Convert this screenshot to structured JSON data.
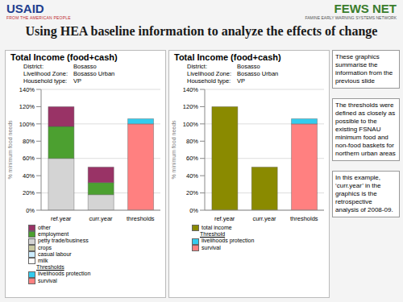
{
  "slide": {
    "title": "Using HEA baseline information to analyze the effects of change",
    "logo_left": {
      "name": "USAID",
      "tagline": "FROM THE AMERICAN PEOPLE"
    },
    "logo_right": {
      "name": "FEWS NET",
      "tagline": "FAMINE EARLY WARNING SYSTEMS NETWORK"
    },
    "notes": [
      "These graphics summarise the information from the previous slide",
      "The thresholds were defined as closely as possible to the existing FSNAU minimum food and non-food baskets for northern urban areas",
      "In this example, ‘curr.year’ in the graphics is the retrospective analysis of 2008-09."
    ]
  },
  "chart_data": [
    {
      "type": "bar",
      "stacked": true,
      "title": "Total Income (food+cash)",
      "subtitle": [
        [
          "District:",
          "Bosasso"
        ],
        [
          "Livelihood Zone:",
          "Bosasso Urban"
        ],
        [
          "Household type:",
          "VP"
        ]
      ],
      "y_label": "% minimum food needs",
      "categories": [
        "ref.year",
        "curr.year",
        "thresholds"
      ],
      "series": [
        {
          "name": "other",
          "color": "#993366",
          "values": [
            23,
            18,
            null
          ]
        },
        {
          "name": "employment",
          "color": "#4ca030",
          "values": [
            37,
            14,
            null
          ]
        },
        {
          "name": "petty trade/business",
          "color": "#d4d4d4",
          "values": [
            60,
            18,
            null
          ]
        },
        {
          "name": "crops",
          "color": "#c8c8a0",
          "values": [
            0,
            0,
            null
          ]
        },
        {
          "name": "casual labour",
          "color": "#ccecff",
          "values": [
            0,
            0,
            null
          ]
        },
        {
          "name": "milk",
          "color": "#ffffff",
          "values": [
            0,
            0,
            null
          ]
        }
      ],
      "legend_title": "Thresholds",
      "threshold_series": [
        {
          "name": "livelihoods protection",
          "color": "#33ccee",
          "values": [
            null,
            null,
            6
          ]
        },
        {
          "name": "survival",
          "color": "#ff8080",
          "values": [
            null,
            null,
            100
          ]
        }
      ],
      "ylim": [
        0,
        140
      ],
      "yticks": [
        {
          "value": 0,
          "label": "0%"
        },
        {
          "value": 20,
          "label": "20%"
        },
        {
          "value": 40,
          "label": "40%"
        },
        {
          "value": 60,
          "label": "60%"
        },
        {
          "value": 80,
          "label": "80%"
        },
        {
          "value": 100,
          "label": "100%"
        },
        {
          "value": 120,
          "label": "120%"
        },
        {
          "value": 140,
          "label": "140%"
        }
      ],
      "grid": true
    },
    {
      "type": "bar",
      "stacked": true,
      "title": "Total Income (food+cash)",
      "subtitle": [
        [
          "District:",
          "Bosasso"
        ],
        [
          "Livelihood Zone:",
          "Bosasso Urban"
        ],
        [
          "Household type:",
          "VP"
        ]
      ],
      "y_label": "% minimum food needs",
      "categories": [
        "ref.year",
        "curr.year",
        "thresholds"
      ],
      "series": [
        {
          "name": "total income",
          "color": "#8a8a00",
          "values": [
            120,
            50,
            null
          ]
        }
      ],
      "legend_title": "Threshold",
      "threshold_series": [
        {
          "name": "livelihoods protection",
          "color": "#33ccee",
          "values": [
            null,
            null,
            6
          ]
        },
        {
          "name": "survival",
          "color": "#ff8080",
          "values": [
            null,
            null,
            100
          ]
        }
      ],
      "ylim": [
        0,
        140
      ],
      "yticks": [
        {
          "value": 0,
          "label": "0%"
        },
        {
          "value": 20,
          "label": "20%"
        },
        {
          "value": 40,
          "label": "40%"
        },
        {
          "value": 60,
          "label": "60%"
        },
        {
          "value": 80,
          "label": "80%"
        },
        {
          "value": 100,
          "label": "100%"
        },
        {
          "value": 120,
          "label": "120%"
        },
        {
          "value": 140,
          "label": "140%"
        }
      ],
      "grid": true
    }
  ]
}
